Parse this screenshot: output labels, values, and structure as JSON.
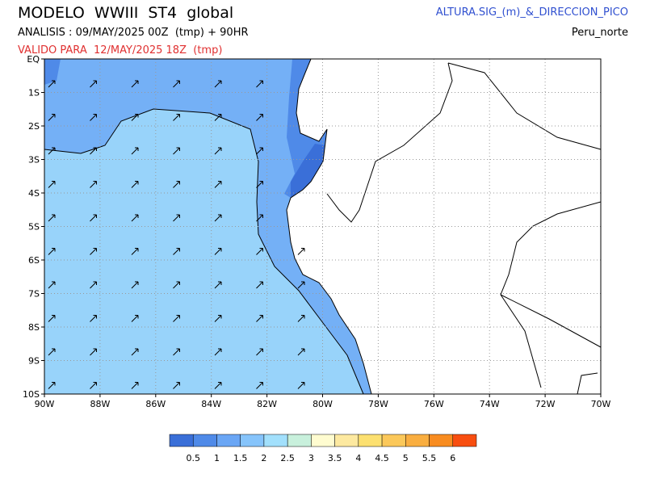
{
  "header": {
    "title": "MODELO  WWIII  ST4  global",
    "analysis": "ANALISIS : 09/MAY/2025 00Z  (tmp) + 90HR",
    "valid": "VALIDO PARA  12/MAY/2025 18Z  (tmp)",
    "variable": "ALTURA.SIG_(m)_&_DIRECCION_PICO",
    "region": "Peru_norte"
  },
  "map": {
    "lat_labels": [
      "EQ",
      "1S",
      "2S",
      "3S",
      "4S",
      "5S",
      "6S",
      "7S",
      "8S",
      "9S",
      "10S"
    ],
    "lon_labels": [
      "90W",
      "88W",
      "86W",
      "84W",
      "82W",
      "80W",
      "78W",
      "76W",
      "74W",
      "72W",
      "70W"
    ]
  },
  "legend": {
    "colors": [
      "#3a6fd8",
      "#4f8ae8",
      "#6aa6f5",
      "#86c4fb",
      "#a2e0fc",
      "#c8f0dc",
      "#fffcd0",
      "#fde9a0",
      "#fce070",
      "#fbc85a",
      "#f9ae40",
      "#f88c20",
      "#f84e10"
    ],
    "labels": [
      "0.5",
      "1",
      "1.5",
      "2",
      "2.5",
      "3",
      "3.5",
      "4",
      "4.5",
      "5",
      "5.5",
      "6"
    ]
  }
}
